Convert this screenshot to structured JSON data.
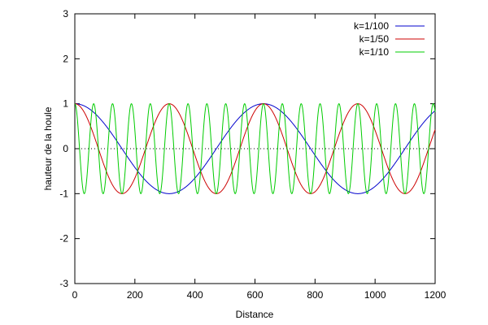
{
  "chart_data": {
    "type": "line",
    "title": "",
    "xlabel": "Distance",
    "ylabel": "hauteur de la houle",
    "xlim": [
      0,
      1200
    ],
    "ylim": [
      -3,
      3
    ],
    "xticks": [
      0,
      200,
      400,
      600,
      800,
      1000,
      1200
    ],
    "yticks": [
      -3,
      -2,
      -1,
      0,
      1,
      2,
      3
    ],
    "grid": false,
    "zero_line": "dotted",
    "legend": "top-right",
    "series": [
      {
        "name": "k=1/100",
        "function": "cos(x/100)",
        "color": "#0000cc"
      },
      {
        "name": "k=1/50",
        "function": "cos(x/50)",
        "color": "#cc0000"
      },
      {
        "name": "k=1/10",
        "function": "cos(x/10)",
        "color": "#00cc00"
      }
    ]
  }
}
